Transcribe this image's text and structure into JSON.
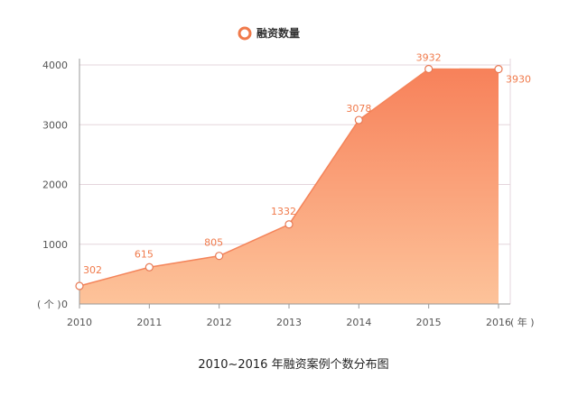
{
  "chart_data": {
    "type": "area",
    "title": "2010~2016 年融资案例个数分布图",
    "x": [
      "2010",
      "2011",
      "2012",
      "2013",
      "2014",
      "2015",
      "2016"
    ],
    "series": [
      {
        "name": "融资数量",
        "values": [
          302,
          615,
          805,
          1332,
          3078,
          3932,
          3930
        ]
      }
    ],
    "xunit": "( 年 )",
    "yunit": "( 个 )",
    "yticks": [
      0,
      1000,
      2000,
      3000,
      4000
    ],
    "ylim": [
      0,
      4000
    ],
    "grid": true,
    "legend_position": "top-center",
    "colors": {
      "area_top": "#f7815a",
      "area_bottom": "#fdc39a",
      "line": "#f4845a",
      "label": "#f07a4b",
      "marker_fill": "#ffffff",
      "marker_stroke": "#e87a55",
      "grid": "#e5d5dc"
    }
  }
}
